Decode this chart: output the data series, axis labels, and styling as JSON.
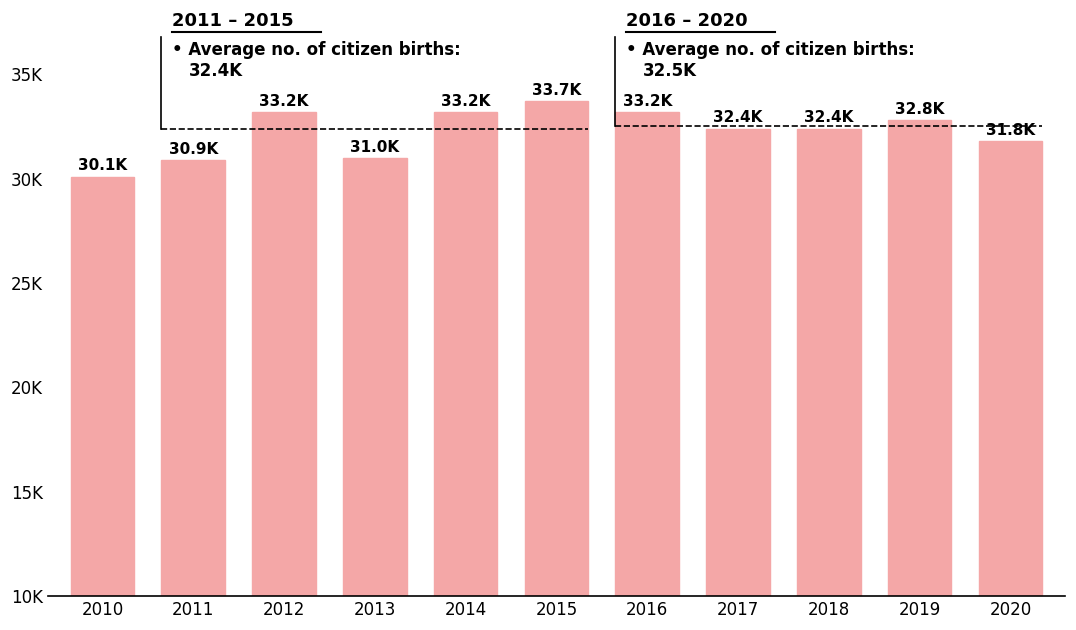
{
  "years": [
    2010,
    2011,
    2012,
    2013,
    2014,
    2015,
    2016,
    2017,
    2018,
    2019,
    2020
  ],
  "values": [
    30100,
    30900,
    33200,
    31000,
    33200,
    33700,
    33200,
    32400,
    32400,
    32800,
    31800
  ],
  "labels": [
    "30.1K",
    "30.9K",
    "33.2K",
    "31.0K",
    "33.2K",
    "33.7K",
    "33.2K",
    "32.4K",
    "32.4K",
    "32.8K",
    "31.8K"
  ],
  "bar_color": "#F4A7A7",
  "avg1_value": 32400,
  "avg1_period": "2011 – 2015",
  "avg1_bullet_text1": "• Average no. of citizen births:",
  "avg1_bullet_text2": "32.4K",
  "avg2_value": 32500,
  "avg2_period": "2016 – 2020",
  "avg2_bullet_text1": "• Average no. of citizen births:",
  "avg2_bullet_text2": "32.5K",
  "ylim": [
    10000,
    37500
  ],
  "yticks": [
    10000,
    15000,
    20000,
    25000,
    30000,
    35000
  ],
  "ytick_labels": [
    "10K",
    "15K",
    "20K",
    "25K",
    "30K",
    "35K"
  ],
  "background_color": "#ffffff",
  "label_fontsize": 11,
  "tick_fontsize": 12,
  "annotation_fontsize": 13
}
